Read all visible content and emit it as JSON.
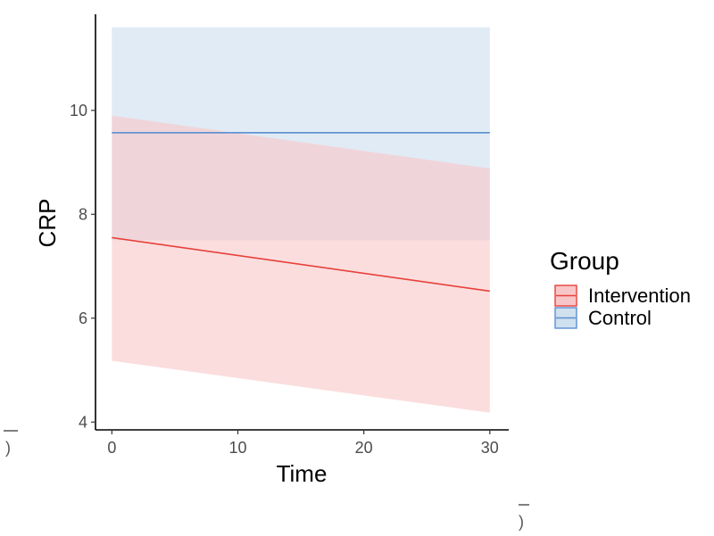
{
  "chart_data": {
    "type": "line",
    "title": "",
    "xlabel": "Time",
    "ylabel": "CRP",
    "xlim": [
      -1.3,
      31.5
    ],
    "ylim": [
      3.85,
      11.85
    ],
    "xticks": [
      0,
      10,
      20,
      30
    ],
    "yticks": [
      4,
      6,
      8,
      10
    ],
    "x_tick_labels": [
      "0",
      "10",
      "20",
      "30"
    ],
    "y_tick_labels": [
      "4",
      "6",
      "8",
      "10"
    ],
    "grid": false,
    "legend": {
      "title": "Group",
      "position": "right"
    },
    "series": [
      {
        "name": "Intervention",
        "color": "#e8403a",
        "band_color": "#f8c6c8",
        "x": [
          0,
          30
        ],
        "y": [
          7.55,
          6.52
        ],
        "lower": [
          5.18,
          4.18
        ],
        "upper": [
          9.9,
          8.88
        ]
      },
      {
        "name": "Control",
        "color": "#5b8fd0",
        "band_color": "#cfe0ef",
        "x": [
          0,
          30
        ],
        "y": [
          9.57,
          9.57
        ],
        "lower": [
          7.5,
          7.5
        ],
        "upper": [
          11.6,
          11.6
        ]
      }
    ]
  },
  "stray_marks": {
    "left": ")",
    "bottom_right": ")"
  }
}
